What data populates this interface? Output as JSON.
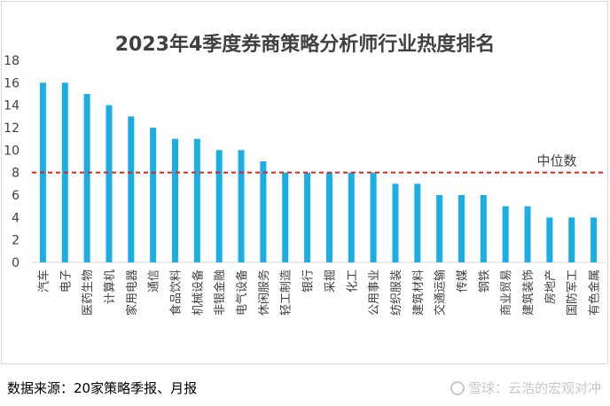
{
  "chart_data": {
    "type": "bar",
    "title": "2023年4季度券商策略分析师行业热度排名",
    "categories": [
      "汽车",
      "电子",
      "医药生物",
      "计算机",
      "家用电器",
      "通信",
      "食品饮料",
      "机械设备",
      "非银金融",
      "电气设备",
      "休闲服务",
      "轻工制造",
      "银行",
      "采掘",
      "化工",
      "公用事业",
      "纺织服装",
      "建筑材料",
      "交通运输",
      "传媒",
      "钢铁",
      "商业贸易",
      "建筑装饰",
      "房地产",
      "国防军工",
      "有色金属"
    ],
    "values": [
      16,
      16,
      15,
      14,
      13,
      12,
      11,
      11,
      10,
      10,
      9,
      8,
      8,
      8,
      8,
      8,
      7,
      7,
      6,
      6,
      6,
      5,
      5,
      4,
      4,
      4
    ],
    "ylim": [
      0,
      18
    ],
    "yticks": [
      0,
      2,
      4,
      6,
      8,
      10,
      12,
      14,
      16,
      18
    ],
    "bar_color": "#1aade6",
    "reference_line": {
      "value": 8,
      "label": "中位数",
      "color": "#e0201b"
    },
    "grid": false,
    "legend": "none"
  },
  "footer": {
    "source": "数据来源：20家策略季报、月报",
    "watermark": "雪球：云浩的宏观对冲"
  }
}
